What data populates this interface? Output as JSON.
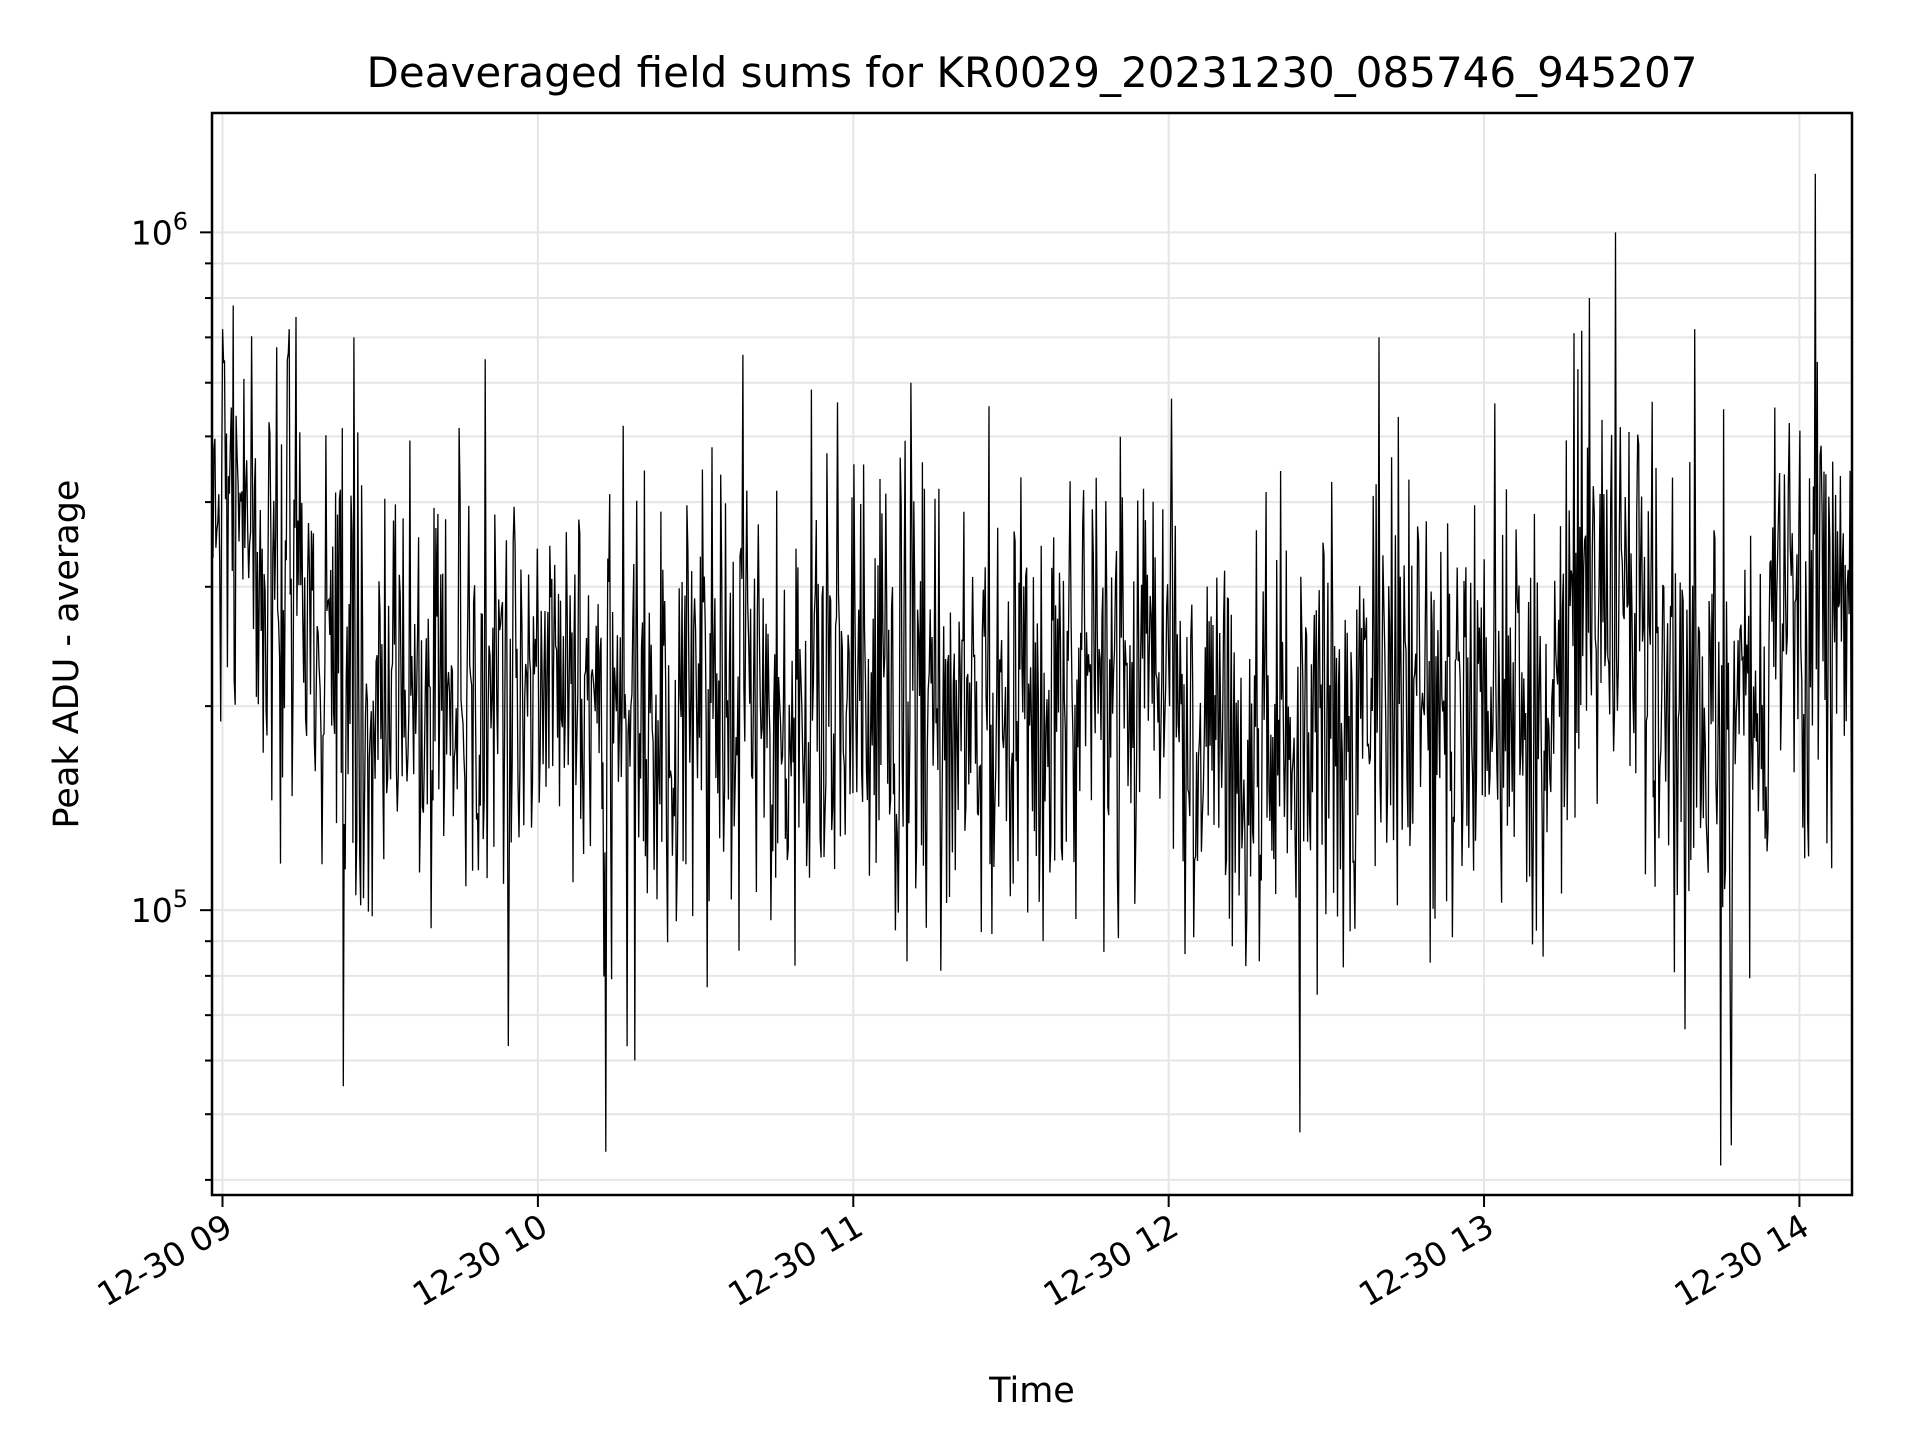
{
  "chart_data": {
    "type": "line",
    "title": "Deaveraged field sums for KR0029_20231230_085746_945207",
    "xlabel": "Time",
    "ylabel": "Peak ADU - average",
    "yscale": "log",
    "grid": true,
    "xlim": [
      "2023-12-30 08:58",
      "2023-12-30 14:10"
    ],
    "ylim": [
      38000,
      1500000
    ],
    "x_ticks": [
      {
        "value": "2023-12-30 09:00",
        "label": "12-30 09"
      },
      {
        "value": "2023-12-30 10:00",
        "label": "12-30 10"
      },
      {
        "value": "2023-12-30 11:00",
        "label": "12-30 11"
      },
      {
        "value": "2023-12-30 12:00",
        "label": "12-30 12"
      },
      {
        "value": "2023-12-30 13:00",
        "label": "12-30 13"
      },
      {
        "value": "2023-12-30 14:00",
        "label": "12-30 14"
      }
    ],
    "y_ticks": [
      {
        "value": 100000,
        "label_base": "10",
        "label_exp": "5"
      },
      {
        "value": 1000000,
        "label_base": "10",
        "label_exp": "6"
      }
    ],
    "series": [
      {
        "color": "#000000",
        "start": "2023-12-30 08:58",
        "end": "2023-12-30 14:10",
        "n_points": 1700,
        "typical_range": [
          100000,
          500000
        ],
        "local_maxima": [
          {
            "t": "2023-12-30 09:02",
            "y": 780000
          },
          {
            "t": "2023-12-30 09:14",
            "y": 750000
          },
          {
            "t": "2023-12-30 09:25",
            "y": 700000
          },
          {
            "t": "2023-12-30 09:50",
            "y": 650000
          },
          {
            "t": "2023-12-30 10:39",
            "y": 660000
          },
          {
            "t": "2023-12-30 11:11",
            "y": 600000
          },
          {
            "t": "2023-12-30 12:40",
            "y": 700000
          },
          {
            "t": "2023-12-30 13:20",
            "y": 800000
          },
          {
            "t": "2023-12-30 13:25",
            "y": 1000000
          },
          {
            "t": "2023-12-30 13:40",
            "y": 720000
          },
          {
            "t": "2023-12-30 14:03",
            "y": 1220000
          }
        ],
        "local_minima": [
          {
            "t": "2023-12-30 09:23",
            "y": 55000
          },
          {
            "t": "2023-12-30 10:13",
            "y": 44000
          },
          {
            "t": "2023-12-30 10:17",
            "y": 63000
          },
          {
            "t": "2023-12-30 12:25",
            "y": 47000
          },
          {
            "t": "2023-12-30 13:45",
            "y": 42000
          },
          {
            "t": "2023-12-30 13:47",
            "y": 45000
          }
        ]
      }
    ]
  }
}
